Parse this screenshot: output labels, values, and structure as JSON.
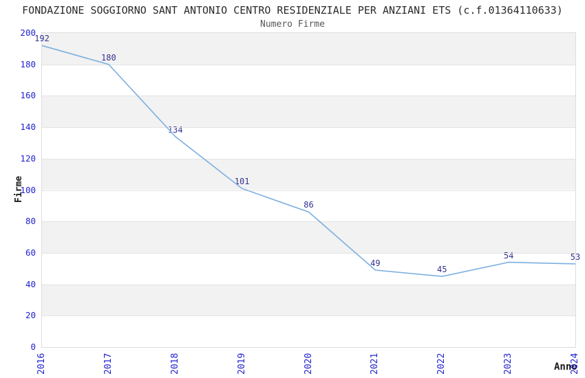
{
  "header": {
    "title": "FONDAZIONE SOGGIORNO SANT ANTONIO CENTRO RESIDENZIALE PER ANZIANI ETS (c.f.01364110633)",
    "subtitle": "Numero Firme"
  },
  "chart_data": {
    "type": "line",
    "title": "FONDAZIONE SOGGIORNO SANT ANTONIO CENTRO RESIDENZIALE PER ANZIANI ETS (c.f.01364110633)",
    "subtitle": "Numero Firme",
    "x": [
      "2016",
      "2017",
      "2018",
      "2019",
      "2020",
      "2021",
      "2022",
      "2023",
      "2024"
    ],
    "values": [
      192,
      180,
      134,
      101,
      86,
      49,
      45,
      54,
      53
    ],
    "xlabel": "Anno",
    "ylabel": "Firme",
    "ylim": [
      0,
      200
    ],
    "ytick_step": 20,
    "grid": "horizontal-bands-alternating",
    "legend": "none",
    "colors": {
      "line": "#7cafe0",
      "point_label": "#32328f",
      "tick_label": "#1f1fd0",
      "band": "#f2f2f2",
      "grid_line": "#e3e3e3",
      "title": "#2b2b2b",
      "subtitle": "#575757",
      "axis_label": "#1a1a1a"
    }
  }
}
